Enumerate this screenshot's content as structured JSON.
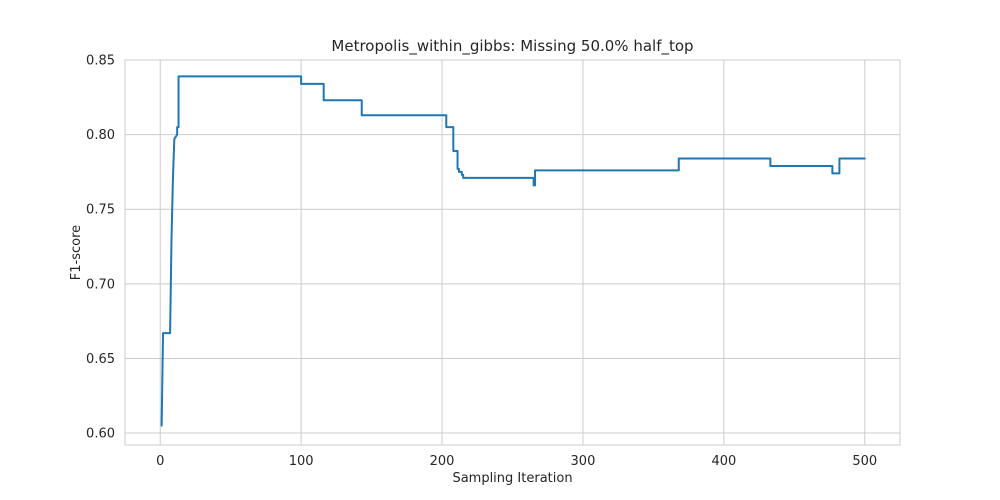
{
  "chart_data": {
    "type": "line",
    "title": "Metropolis_within_gibbs: Missing 50.0% half_top",
    "xlabel": "Sampling Iteration",
    "ylabel": "F1-score",
    "xlim": [
      -25,
      525
    ],
    "ylim": [
      0.592,
      0.85
    ],
    "xticks": [
      0,
      100,
      200,
      300,
      400,
      500
    ],
    "xtick_labels": [
      "0",
      "100",
      "200",
      "300",
      "400",
      "500"
    ],
    "yticks": [
      0.6,
      0.65,
      0.7,
      0.75,
      0.8,
      0.85
    ],
    "ytick_labels": [
      "0.60",
      "0.65",
      "0.70",
      "0.75",
      "0.80",
      "0.85"
    ],
    "grid": true,
    "line_color": "#1f77b4",
    "series": [
      {
        "x": [
          1,
          2,
          2,
          7,
          7,
          8,
          9,
          10,
          10,
          12,
          12,
          13,
          13,
          100,
          100,
          116,
          116,
          143,
          143,
          203,
          203,
          208,
          208,
          211,
          211,
          212,
          212,
          214,
          214,
          215,
          215,
          218,
          218,
          265,
          265,
          266,
          266,
          368,
          368,
          433,
          433,
          477,
          477,
          482,
          482,
          500
        ],
        "y": [
          0.605,
          0.667,
          0.667,
          0.667,
          0.667,
          0.73,
          0.77,
          0.797,
          0.797,
          0.8,
          0.805,
          0.805,
          0.839,
          0.839,
          0.834,
          0.834,
          0.823,
          0.823,
          0.813,
          0.813,
          0.805,
          0.805,
          0.789,
          0.789,
          0.777,
          0.777,
          0.775,
          0.775,
          0.773,
          0.773,
          0.771,
          0.771,
          0.771,
          0.771,
          0.766,
          0.766,
          0.776,
          0.776,
          0.784,
          0.784,
          0.779,
          0.779,
          0.774,
          0.774,
          0.784,
          0.784
        ]
      }
    ]
  }
}
